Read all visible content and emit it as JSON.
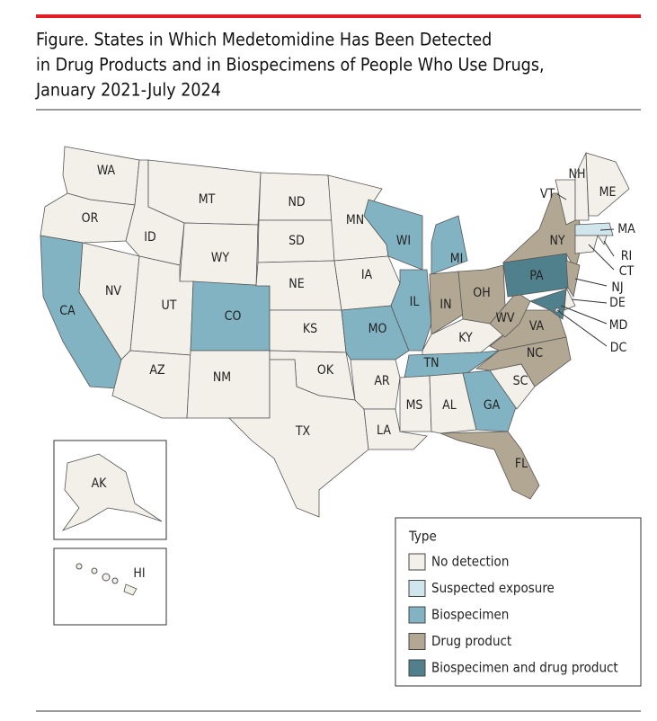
{
  "title_lines": [
    "Figure. States in Which Medetomidine Has Been Detected",
    "in Drug Products and in Biospecimens of People Who Use Drugs,",
    "January 2021-July 2024"
  ],
  "legend": {
    "title": "Type",
    "items": [
      {
        "label": "No detection",
        "color": "#f2f0e9"
      },
      {
        "label": "Suspected exposure",
        "color": "#d0e5ec"
      },
      {
        "label": "Biospecimen",
        "color": "#82b3c3"
      },
      {
        "label": "Drug product",
        "color": "#b2a793"
      },
      {
        "label": "Biospecimen and drug product",
        "color": "#50808c"
      }
    ]
  },
  "states": [
    {
      "label": "WA",
      "type": "No detection"
    },
    {
      "label": "OR",
      "type": "No detection"
    },
    {
      "label": "CA",
      "type": "Biospecimen"
    },
    {
      "label": "NV",
      "type": "No detection"
    },
    {
      "label": "ID",
      "type": "No detection"
    },
    {
      "label": "MT",
      "type": "No detection"
    },
    {
      "label": "WY",
      "type": "No detection"
    },
    {
      "label": "UT",
      "type": "No detection"
    },
    {
      "label": "AZ",
      "type": "No detection"
    },
    {
      "label": "CO",
      "type": "Biospecimen"
    },
    {
      "label": "NM",
      "type": "No detection"
    },
    {
      "label": "ND",
      "type": "No detection"
    },
    {
      "label": "SD",
      "type": "No detection"
    },
    {
      "label": "NE",
      "type": "No detection"
    },
    {
      "label": "KS",
      "type": "No detection"
    },
    {
      "label": "OK",
      "type": "No detection"
    },
    {
      "label": "TX",
      "type": "No detection"
    },
    {
      "label": "MN",
      "type": "No detection"
    },
    {
      "label": "IA",
      "type": "No detection"
    },
    {
      "label": "MO",
      "type": "Biospecimen"
    },
    {
      "label": "AR",
      "type": "No detection"
    },
    {
      "label": "LA",
      "type": "No detection"
    },
    {
      "label": "WI",
      "type": "Biospecimen"
    },
    {
      "label": "IL",
      "type": "Biospecimen"
    },
    {
      "label": "MI",
      "type": "Biospecimen"
    },
    {
      "label": "IN",
      "type": "Drug product"
    },
    {
      "label": "OH",
      "type": "Drug product"
    },
    {
      "label": "KY",
      "type": "No detection"
    },
    {
      "label": "TN",
      "type": "Biospecimen"
    },
    {
      "label": "MS",
      "type": "No detection"
    },
    {
      "label": "AL",
      "type": "No detection"
    },
    {
      "label": "GA",
      "type": "Biospecimen"
    },
    {
      "label": "FL",
      "type": "Drug product"
    },
    {
      "label": "SC",
      "type": "No detection"
    },
    {
      "label": "NC",
      "type": "Drug product"
    },
    {
      "label": "VA",
      "type": "Drug product"
    },
    {
      "label": "WV",
      "type": "Drug product"
    },
    {
      "label": "PA",
      "type": "Biospecimen and drug product"
    },
    {
      "label": "NY",
      "type": "Drug product"
    },
    {
      "label": "VT",
      "type": "No detection"
    },
    {
      "label": "NH",
      "type": "No detection"
    },
    {
      "label": "ME",
      "type": "No detection"
    },
    {
      "label": "MA",
      "type": "Suspected exposure"
    },
    {
      "label": "RI",
      "type": "No detection"
    },
    {
      "label": "CT",
      "type": "No detection"
    },
    {
      "label": "NJ",
      "type": "Drug product"
    },
    {
      "label": "DE",
      "type": "No detection"
    },
    {
      "label": "MD",
      "type": "Biospecimen and drug product"
    },
    {
      "label": "DC",
      "type": "No detection"
    },
    {
      "label": "AK",
      "type": "No detection"
    },
    {
      "label": "HI",
      "type": "No detection"
    }
  ]
}
